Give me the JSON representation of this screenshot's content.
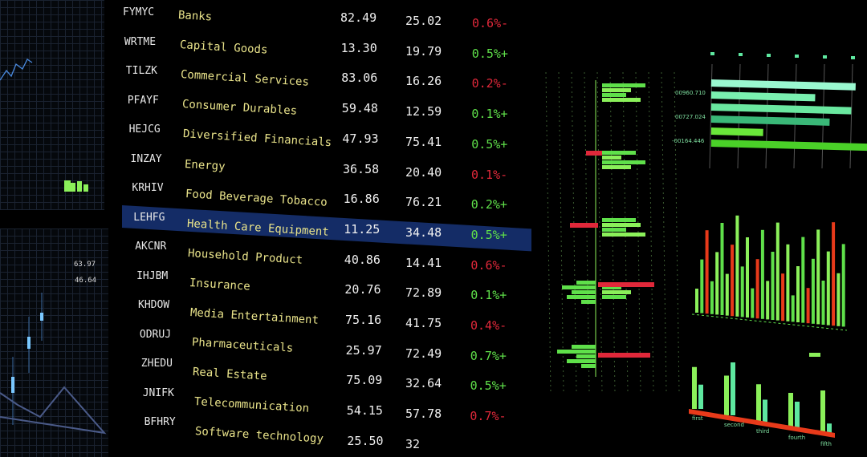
{
  "colors": {
    "up": "#5fe04a",
    "down": "#e0283a",
    "highlight": "#142c66",
    "name": "#e9e38a",
    "bar_green": "#8bf05a",
    "bar_teal": "#5ee8a0",
    "bar_red": "#e83a1a"
  },
  "table": {
    "selected_row": 7,
    "rows": [
      {
        "ticker": "FYMYC",
        "name": "Banks",
        "value1": "82.49",
        "value2": "25.02",
        "change": "0.6%-",
        "dir": "down"
      },
      {
        "ticker": "WRTME",
        "name": "Capital Goods",
        "value1": "13.30",
        "value2": "19.79",
        "change": "0.5%+",
        "dir": "up"
      },
      {
        "ticker": "TILZK",
        "name": "Commercial Services",
        "value1": "83.06",
        "value2": "16.26",
        "change": "0.2%-",
        "dir": "down"
      },
      {
        "ticker": "PFAYF",
        "name": "Consumer Durables",
        "value1": "59.48",
        "value2": "12.59",
        "change": "0.1%+",
        "dir": "up"
      },
      {
        "ticker": "HEJCG",
        "name": "Diversified Financials",
        "value1": "47.93",
        "value2": "75.41",
        "change": "0.5%+",
        "dir": "up"
      },
      {
        "ticker": "INZAY",
        "name": "Energy",
        "value1": "36.58",
        "value2": "20.40",
        "change": "0.1%-",
        "dir": "down"
      },
      {
        "ticker": "KRHIV",
        "name": "Food Beverage Tobacco",
        "value1": "16.86",
        "value2": "76.21",
        "change": "0.2%+",
        "dir": "up"
      },
      {
        "ticker": "LEHFG",
        "name": "Health Care Equipment",
        "value1": "11.25",
        "value2": "34.48",
        "change": "0.5%+",
        "dir": "up"
      },
      {
        "ticker": "AKCNR",
        "name": "Household Product",
        "value1": "40.86",
        "value2": "14.41",
        "change": "0.6%-",
        "dir": "down"
      },
      {
        "ticker": "IHJBM",
        "name": "Insurance",
        "value1": "20.76",
        "value2": "72.89",
        "change": "0.1%+",
        "dir": "up"
      },
      {
        "ticker": "KHDOW",
        "name": "Media Entertainment",
        "value1": "75.16",
        "value2": "41.75",
        "change": "0.4%-",
        "dir": "down"
      },
      {
        "ticker": "ODRUJ",
        "name": "Pharmaceuticals",
        "value1": "25.97",
        "value2": "72.49",
        "change": "0.7%+",
        "dir": "up"
      },
      {
        "ticker": "ZHEDU",
        "name": "Real Estate",
        "value1": "75.09",
        "value2": "32.64",
        "change": "0.5%+",
        "dir": "up"
      },
      {
        "ticker": "JNIFK",
        "name": "Telecommunication",
        "value1": "54.15",
        "value2": "57.78",
        "change": "0.7%-",
        "dir": "down"
      },
      {
        "ticker": "BFHRY",
        "name": "Software technology",
        "value1": "25.50",
        "value2": "32",
        "change": "",
        "dir": "down"
      }
    ]
  },
  "left_panel": {
    "labels": [
      "63.97",
      "46.64"
    ]
  },
  "hbar_panel": {
    "labels": [
      "00960.710",
      "00727.024",
      "-00164.446"
    ],
    "bars": [
      1.0,
      0.72,
      0.97,
      0.82,
      0.36,
      1.08
    ]
  },
  "grouped_bars": {
    "categories": [
      "first",
      "second",
      "third",
      "fourth",
      "fifth"
    ],
    "series": [
      [
        0.95,
        0.9,
        0.85,
        0.8,
        1.0
      ],
      [
        0.55,
        1.2,
        0.5,
        0.6,
        0.25
      ]
    ]
  },
  "center_chart": {
    "green_right": [
      0.9,
      0.6,
      0.5,
      0.8,
      0.7,
      0.4,
      0.9,
      0.6,
      0.7,
      0.8,
      0.5,
      0.9,
      0.4,
      0.6,
      0.5
    ],
    "green_left": [
      0.4,
      0.7,
      0.5,
      0.6,
      0.3,
      0.5,
      0.8,
      0.4,
      0.6,
      0.3
    ]
  }
}
